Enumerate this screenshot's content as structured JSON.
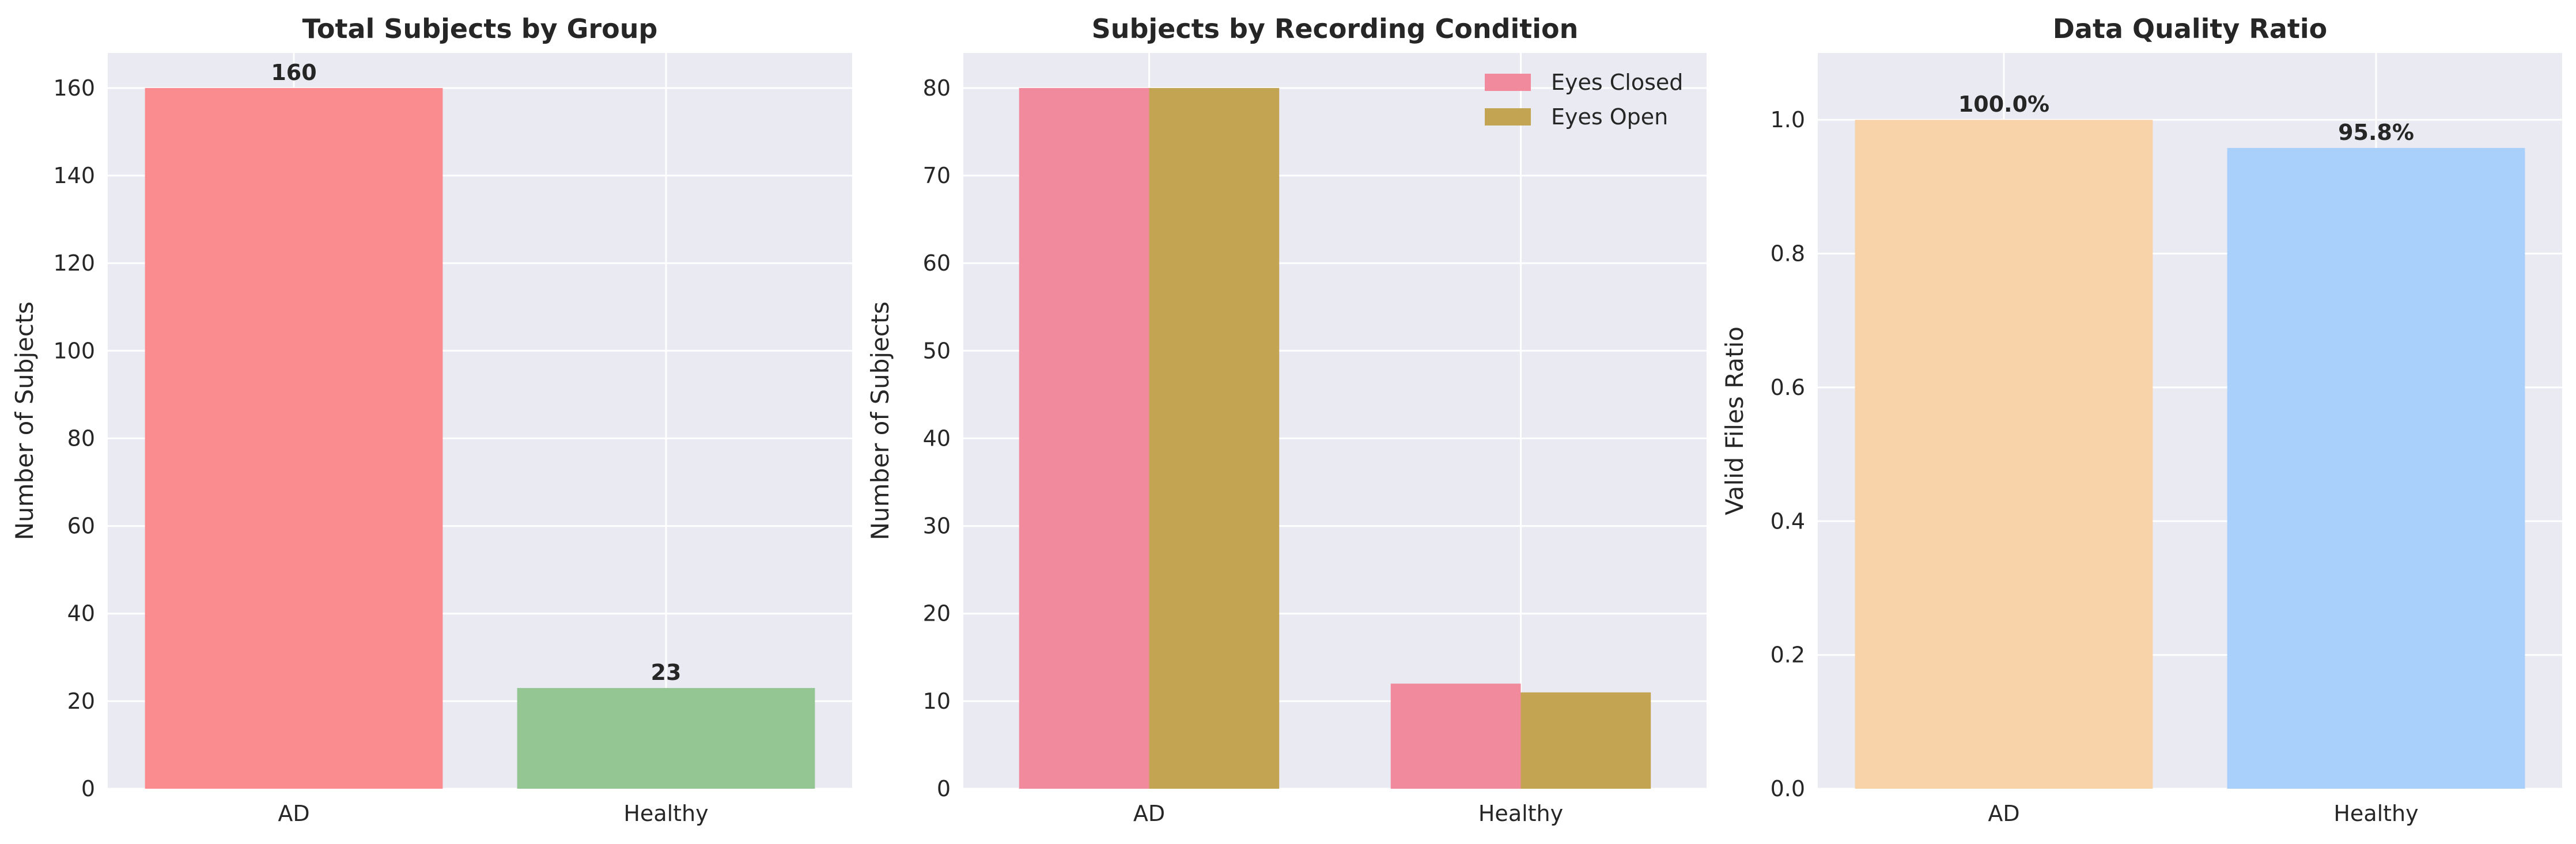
{
  "figure": {
    "background": "#ffffff",
    "plot_background": "#eaeaf2",
    "grid_color": "#ffffff"
  },
  "chart_data": [
    {
      "type": "bar",
      "title": "Total Subjects by Group",
      "xlabel": "",
      "ylabel": "Number of Subjects",
      "categories": [
        "AD",
        "Healthy"
      ],
      "values": [
        160,
        23
      ],
      "colors": [
        "#fa8c8f",
        "#93c693"
      ],
      "data_labels": [
        "160",
        "23"
      ],
      "ylim": [
        0,
        168
      ],
      "yticks": [
        0,
        20,
        40,
        60,
        80,
        100,
        120,
        140,
        160
      ],
      "ytick_labels": [
        "0",
        "20",
        "40",
        "60",
        "80",
        "100",
        "120",
        "140",
        "160"
      ],
      "grid": true
    },
    {
      "type": "bar",
      "title": "Subjects by Recording Condition",
      "xlabel": "",
      "ylabel": "Number of Subjects",
      "categories": [
        "AD",
        "Healthy"
      ],
      "series": [
        {
          "name": "Eyes Closed",
          "values": [
            80,
            12
          ],
          "color": "#f28a9d"
        },
        {
          "name": "Eyes Open",
          "values": [
            80,
            11
          ],
          "color": "#c3a452"
        }
      ],
      "ylim": [
        0,
        84
      ],
      "yticks": [
        0,
        10,
        20,
        30,
        40,
        50,
        60,
        70,
        80
      ],
      "ytick_labels": [
        "0",
        "10",
        "20",
        "30",
        "40",
        "50",
        "60",
        "70",
        "80"
      ],
      "legend": "top-right",
      "grid": true
    },
    {
      "type": "bar",
      "title": "Data Quality Ratio",
      "xlabel": "",
      "ylabel": "Valid Files Ratio",
      "categories": [
        "AD",
        "Healthy"
      ],
      "values": [
        1.0,
        0.958
      ],
      "colors": [
        "#f8d2a9",
        "#a8d0fa"
      ],
      "data_labels": [
        "100.0%",
        "95.8%"
      ],
      "ylim": [
        0,
        1.1
      ],
      "yticks": [
        0.0,
        0.2,
        0.4,
        0.6,
        0.8,
        1.0
      ],
      "ytick_labels": [
        "0.0",
        "0.2",
        "0.4",
        "0.6",
        "0.8",
        "1.0"
      ],
      "grid": true
    }
  ]
}
